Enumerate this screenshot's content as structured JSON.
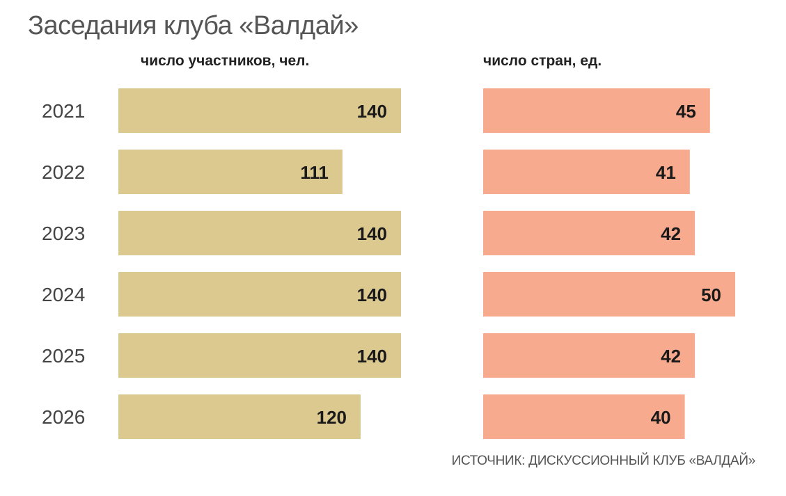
{
  "title": "Заседания клуба «Валдай»",
  "source": "ИСТОЧНИК: ДИСКУССИОННЫЙ КЛУБ «ВАЛДАЙ»",
  "chart_data": [
    {
      "type": "bar",
      "orientation": "horizontal",
      "title": "число участников, чел.",
      "categories": [
        "2021",
        "2022",
        "2023",
        "2024",
        "2025",
        "2026"
      ],
      "values": [
        140,
        111,
        140,
        140,
        140,
        120
      ],
      "color": "#dcc98f",
      "grid": false
    },
    {
      "type": "bar",
      "orientation": "horizontal",
      "title": "число стран, ед.",
      "categories": [
        "2021",
        "2022",
        "2023",
        "2024",
        "2025",
        "2026"
      ],
      "values": [
        45,
        41,
        42,
        50,
        42,
        40
      ],
      "color": "#f7aa8e",
      "grid": false
    }
  ]
}
